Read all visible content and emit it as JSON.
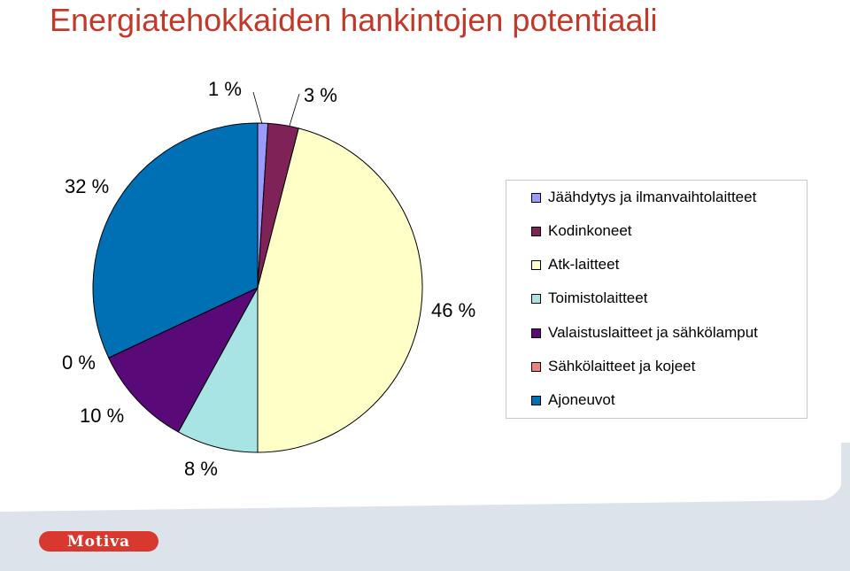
{
  "title": "Energiatehokkaiden hankintojen potentiaali",
  "brand": {
    "logo_text": "Motiva",
    "color": "#d9382e"
  },
  "chart_data": {
    "type": "pie",
    "title": "Energiatehokkaiden hankintojen potentiaali",
    "slices": [
      {
        "name": "Jäähdytys ja ilmanvaihtolaitteet",
        "value": 1,
        "label": "1 %",
        "color": "#9a9aff"
      },
      {
        "name": "Kodinkoneet",
        "value": 3,
        "label": "3 %",
        "color": "#7f2257"
      },
      {
        "name": "Atk-laitteet",
        "value": 46,
        "label": "46 %",
        "color": "#ffffc8"
      },
      {
        "name": "Toimistolaitteet",
        "value": 8,
        "label": "8 %",
        "color": "#a8e4e4"
      },
      {
        "name": "Valaistuslaitteet ja sähkölamput",
        "value": 10,
        "label": "10 %",
        "color": "#5a0a78"
      },
      {
        "name": "Sähkölaitteet ja kojeet",
        "value": 0,
        "label": "0 %",
        "color": "#f08080"
      },
      {
        "name": "Ajoneuvot",
        "value": 32,
        "label": "32 %",
        "color": "#0070b4"
      }
    ],
    "legend_position": "right"
  }
}
